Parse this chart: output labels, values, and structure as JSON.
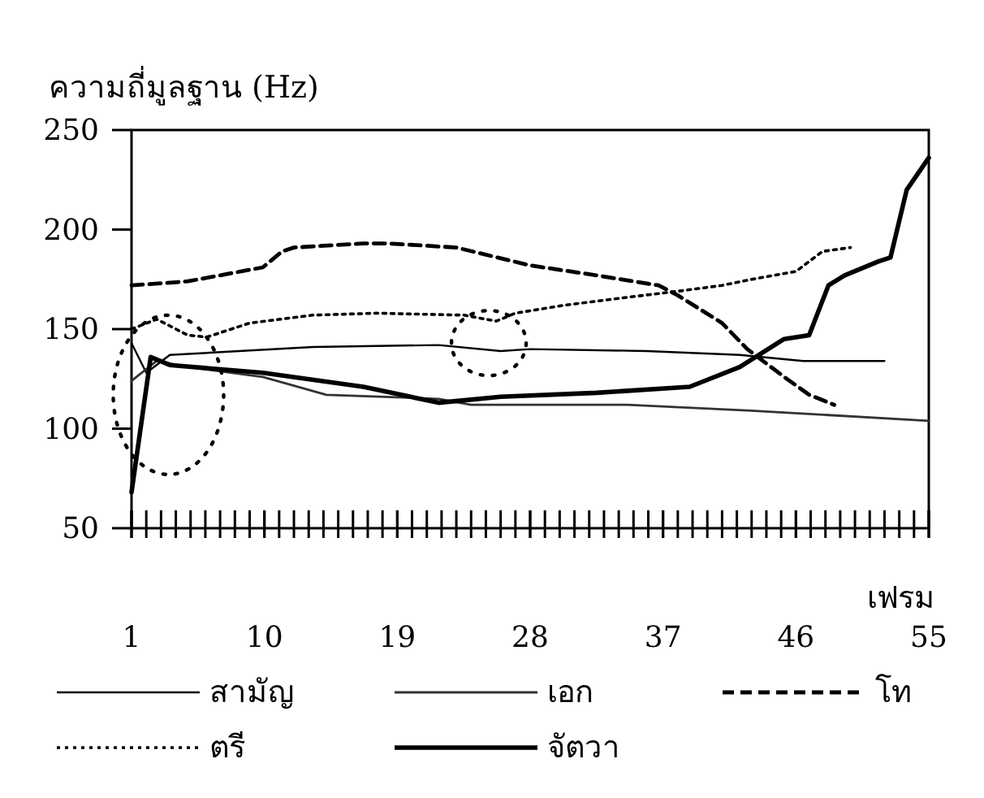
{
  "chart_data": {
    "type": "line",
    "ylabel": "ความถี่มูลฐาน (Hz)",
    "xlabel": "เฟรม",
    "xlim": [
      1,
      55
    ],
    "ylim": [
      50,
      250
    ],
    "yticks": [
      50,
      100,
      150,
      200,
      250
    ],
    "xticks": [
      1,
      10,
      19,
      28,
      37,
      46,
      55
    ],
    "grid": false,
    "legend": "bottom",
    "series": [
      {
        "name": "สามัญ",
        "color": "#000000",
        "line_style": "solid",
        "x": [
          1,
          2,
          3.6,
          13.3,
          21.8,
          26,
          28,
          35.9,
          42.2,
          46.5,
          52
        ],
        "values": [
          143,
          128,
          137,
          141,
          142,
          139,
          140,
          139,
          137,
          134,
          134
        ]
      },
      {
        "name": "เอก",
        "color": "#333333",
        "line_style": "solid",
        "x": [
          1,
          2.7,
          4.8,
          9.9,
          14.2,
          21.8,
          24,
          34.6,
          43,
          55
        ],
        "values": [
          124,
          134,
          131,
          126,
          117,
          115,
          112,
          112,
          109,
          104
        ]
      },
      {
        "name": "โท",
        "color": "#000000",
        "line_style": "dashed",
        "x": [
          1,
          4.8,
          9.9,
          11.2,
          12,
          16.7,
          18.4,
          23,
          28,
          32.5,
          36.7,
          38,
          41,
          42.7,
          45.2,
          46.9,
          48.6
        ],
        "values": [
          172,
          174,
          181,
          189,
          191,
          193,
          193,
          191,
          182,
          177,
          172,
          167,
          153,
          140,
          126,
          117,
          112
        ]
      },
      {
        "name": "ตรี",
        "color": "#000000",
        "line_style": "dotted",
        "x": [
          1,
          2.7,
          4.8,
          6.1,
          9,
          13.3,
          17.6,
          23.5,
          25.7,
          27,
          30.3,
          34.6,
          38,
          41,
          43,
          46,
          47.8,
          49.7
        ],
        "values": [
          150,
          155,
          147,
          146,
          153,
          157,
          158,
          157,
          154,
          158,
          162,
          166,
          169,
          172,
          175,
          179,
          189,
          191
        ]
      },
      {
        "name": "จัตวา",
        "color": "#000000",
        "line_style": "solid",
        "x": [
          1,
          2.3,
          3.6,
          9.9,
          16.7,
          21.8,
          26,
          32.5,
          38.8,
          42.2,
          45.2,
          46.9,
          48.2,
          49.3,
          51.6,
          52.4,
          53.5,
          55
        ],
        "values": [
          68,
          136,
          132,
          128,
          121,
          113,
          116,
          118,
          121,
          131,
          145,
          147,
          172,
          177,
          184,
          186,
          220,
          236
        ]
      }
    ]
  }
}
